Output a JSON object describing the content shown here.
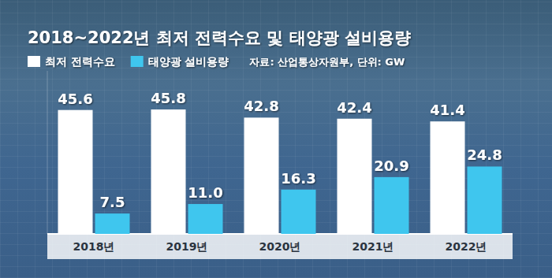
{
  "chart_data": {
    "type": "bar",
    "title": "2018~2022년 최저 전력수요 및 태양광 설비용량",
    "source": "자료: 산업통상자원부, 단위: GW",
    "categories": [
      "2018년",
      "2019년",
      "2020년",
      "2021년",
      "2022년"
    ],
    "series": [
      {
        "name": "최저 전력수요",
        "color": "#ffffff",
        "values": [
          45.6,
          45.8,
          42.8,
          42.4,
          41.4
        ]
      },
      {
        "name": "태양광 설비용량",
        "color": "#3fc6ee",
        "values": [
          7.5,
          11.0,
          16.3,
          20.9,
          24.8
        ],
        "value_labels": [
          "7.5",
          "11.0",
          "16.3",
          "20.9",
          "24.8"
        ]
      }
    ],
    "ylim": [
      0,
      60
    ],
    "data_labels": true,
    "tick_labels": "x",
    "legend": "top-left",
    "grid": false
  }
}
